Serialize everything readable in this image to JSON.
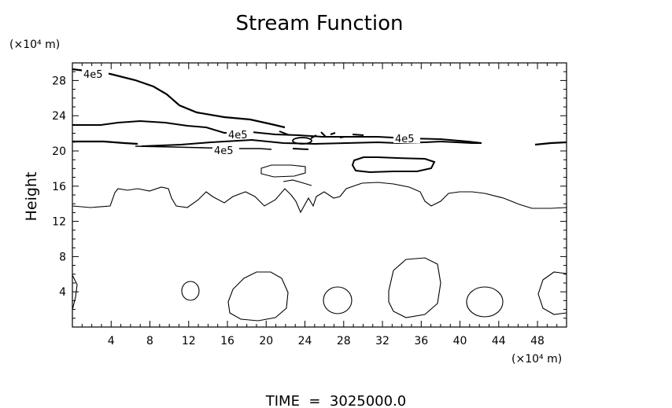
{
  "chart_data": {
    "type": "contour",
    "title": "Stream Function",
    "ylabel": "Height",
    "y_unit": "(×10⁴ m)",
    "x_unit": "(×10⁴ m)",
    "xlim": [
      0,
      51
    ],
    "ylim": [
      0,
      30
    ],
    "x_ticks": [
      "4",
      "8",
      "12",
      "16",
      "20",
      "24",
      "28",
      "32",
      "36",
      "40",
      "44",
      "48"
    ],
    "y_ticks": [
      "4",
      "8",
      "12",
      "16",
      "20",
      "24",
      "28"
    ],
    "contour_labels": [
      "4e5",
      "4e5",
      "4e5",
      "4e5"
    ],
    "footer": "TIME  =  3025000.0"
  }
}
